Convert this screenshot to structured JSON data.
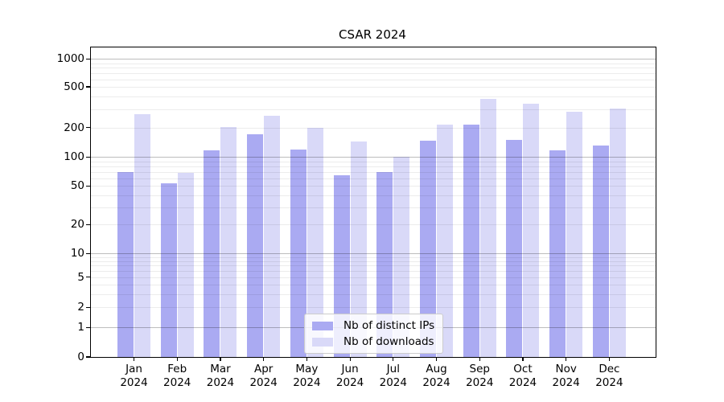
{
  "title": "CSAR 2024",
  "chart_data": {
    "type": "bar",
    "title": "CSAR 2024",
    "categories": [
      "Jan 2024",
      "Feb 2024",
      "Mar 2024",
      "Apr 2024",
      "May 2024",
      "Jun 2024",
      "Jul 2024",
      "Aug 2024",
      "Sep 2024",
      "Oct 2024",
      "Nov 2024",
      "Dec 2024"
    ],
    "series": [
      {
        "name": "Nb of distinct IPs",
        "color": "#aaaaf2",
        "values": [
          70,
          53,
          116,
          170,
          119,
          65,
          70,
          146,
          214,
          150,
          116,
          130
        ]
      },
      {
        "name": "Nb of downloads",
        "color": "#d9d9f8",
        "values": [
          268,
          69,
          203,
          262,
          200,
          145,
          101,
          212,
          383,
          344,
          286,
          308
        ]
      }
    ],
    "yscale": "symlog",
    "ylim": [
      0,
      1315
    ],
    "yticks": [
      0,
      1,
      2,
      5,
      10,
      20,
      50,
      100,
      200,
      500,
      1000
    ],
    "grid": "horizontal log minor gridlines + darker decade lines at 1, 10, 100, 1000",
    "legend_position": "lower center"
  },
  "x_axis": {
    "labels": [
      {
        "month": "Jan",
        "year": "2024"
      },
      {
        "month": "Feb",
        "year": "2024"
      },
      {
        "month": "Mar",
        "year": "2024"
      },
      {
        "month": "Apr",
        "year": "2024"
      },
      {
        "month": "May",
        "year": "2024"
      },
      {
        "month": "Jun",
        "year": "2024"
      },
      {
        "month": "Jul",
        "year": "2024"
      },
      {
        "month": "Aug",
        "year": "2024"
      },
      {
        "month": "Sep",
        "year": "2024"
      },
      {
        "month": "Oct",
        "year": "2024"
      },
      {
        "month": "Nov",
        "year": "2024"
      },
      {
        "month": "Dec",
        "year": "2024"
      }
    ]
  },
  "y_axis": {
    "tick_labels": [
      "0",
      "1",
      "2",
      "5",
      "10",
      "20",
      "50",
      "100",
      "200",
      "500",
      "1000"
    ]
  },
  "legend": {
    "items": [
      "Nb of distinct IPs",
      "Nb of downloads"
    ]
  },
  "colors": {
    "ips_bar": "#aaaaf2",
    "downloads_bar": "#d9d9f8",
    "axis": "#000000",
    "minor_gridline": "#ececec",
    "decade_gridline": "#bdbdbd",
    "legend_border": "#cccccc",
    "background": "#ffffff"
  }
}
